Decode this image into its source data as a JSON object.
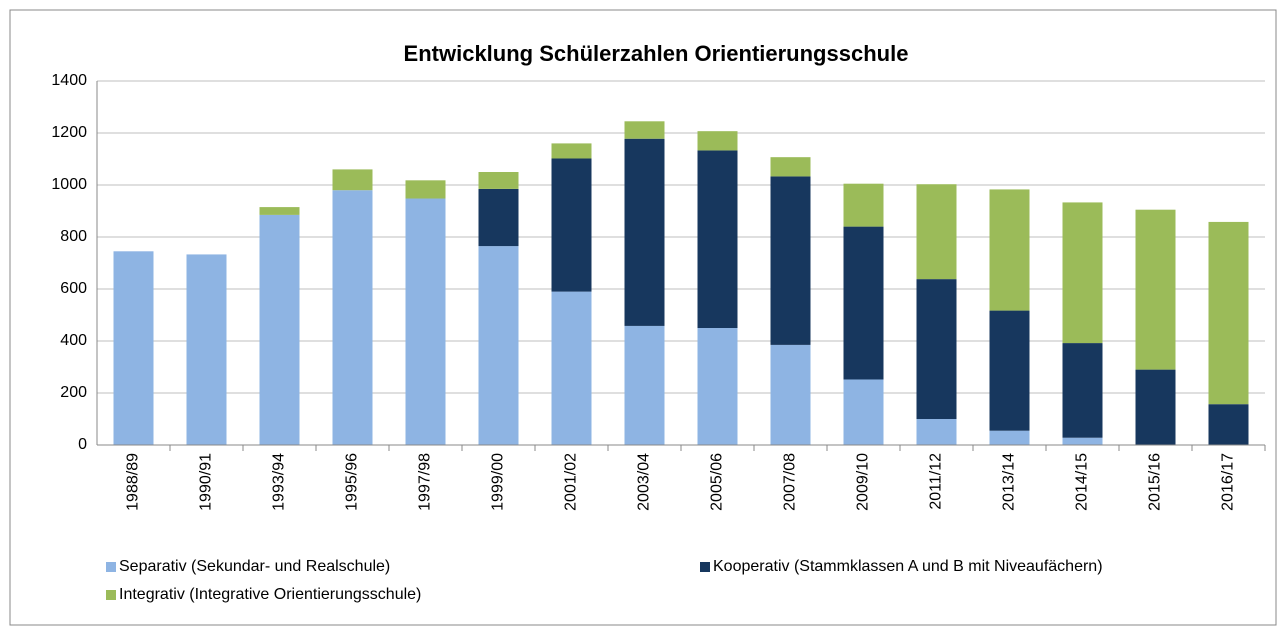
{
  "chart_data": {
    "type": "stacked_bar",
    "title": "Entwicklung Schülerzahlen Orientierungsschule",
    "categories": [
      "1988/89",
      "1990/91",
      "1993/94",
      "1995/96",
      "1997/98",
      "1999/00",
      "2001/02",
      "2003/04",
      "2005/06",
      "2007/08",
      "2009/10",
      "2011/12",
      "2013/14",
      "2014/15",
      "2015/16",
      "2016/17"
    ],
    "series": [
      {
        "name": "Separativ (Sekundar- und Realschule)",
        "color": "#8eb4e3",
        "values": [
          745,
          733,
          885,
          980,
          948,
          765,
          590,
          458,
          450,
          385,
          252,
          100,
          55,
          28,
          0,
          0
        ]
      },
      {
        "name": "Kooperativ (Stammklassen A und B mit Niveaufächern)",
        "color": "#17375e",
        "values": [
          0,
          0,
          0,
          0,
          0,
          220,
          512,
          720,
          683,
          648,
          588,
          538,
          462,
          364,
          290,
          157
        ]
      },
      {
        "name": "Integrativ (Integrative Orientierungsschule)",
        "color": "#9bbb59",
        "values": [
          0,
          0,
          30,
          80,
          70,
          65,
          58,
          67,
          74,
          74,
          165,
          365,
          466,
          541,
          615,
          701
        ]
      }
    ],
    "ylim": [
      0,
      1400
    ],
    "yticks": [
      0,
      200,
      400,
      600,
      800,
      1000,
      1200,
      1400
    ],
    "grid": true
  }
}
